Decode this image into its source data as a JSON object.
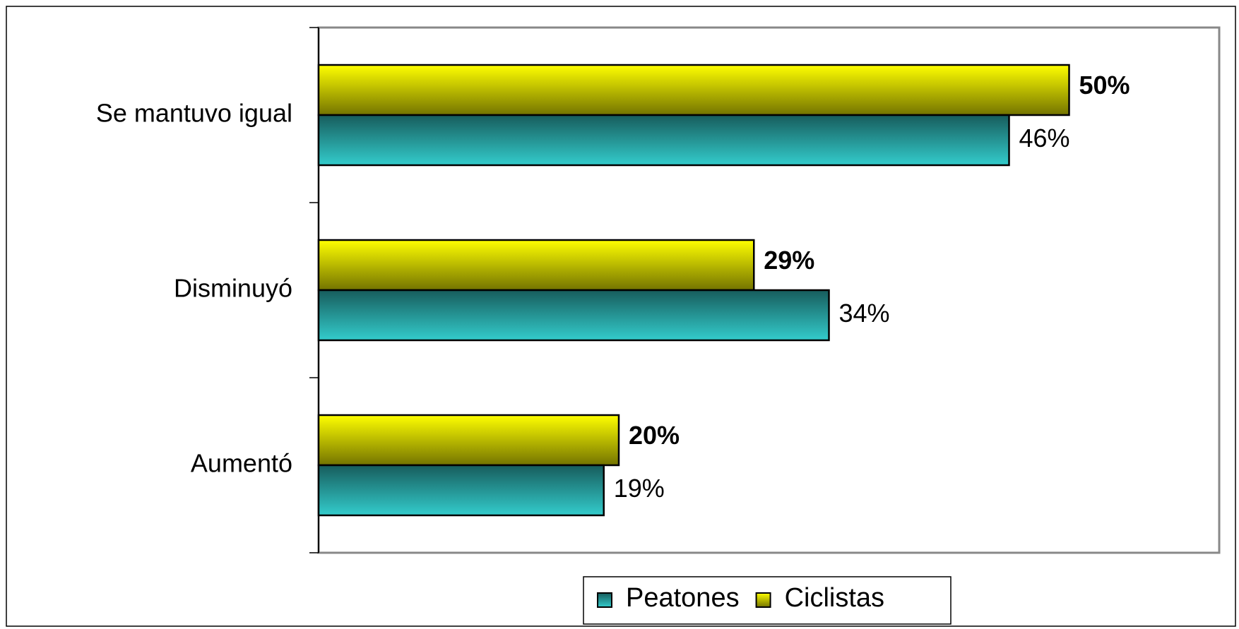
{
  "chart_data": {
    "type": "hbar",
    "categories": [
      "Se mantuvo igual",
      "Disminuyó",
      "Aumentó"
    ],
    "series": [
      {
        "name": "Peatones",
        "color": "#33cccc",
        "values": [
          46,
          34,
          19
        ],
        "value_labels": [
          "46%",
          "34%",
          "19%"
        ]
      },
      {
        "name": "Ciclistas",
        "color": "#ffff00",
        "values": [
          50,
          29,
          20
        ],
        "value_labels": [
          "50%",
          "29%",
          "20%"
        ]
      }
    ],
    "xlim": [
      0,
      60
    ],
    "legend": "bottom"
  }
}
